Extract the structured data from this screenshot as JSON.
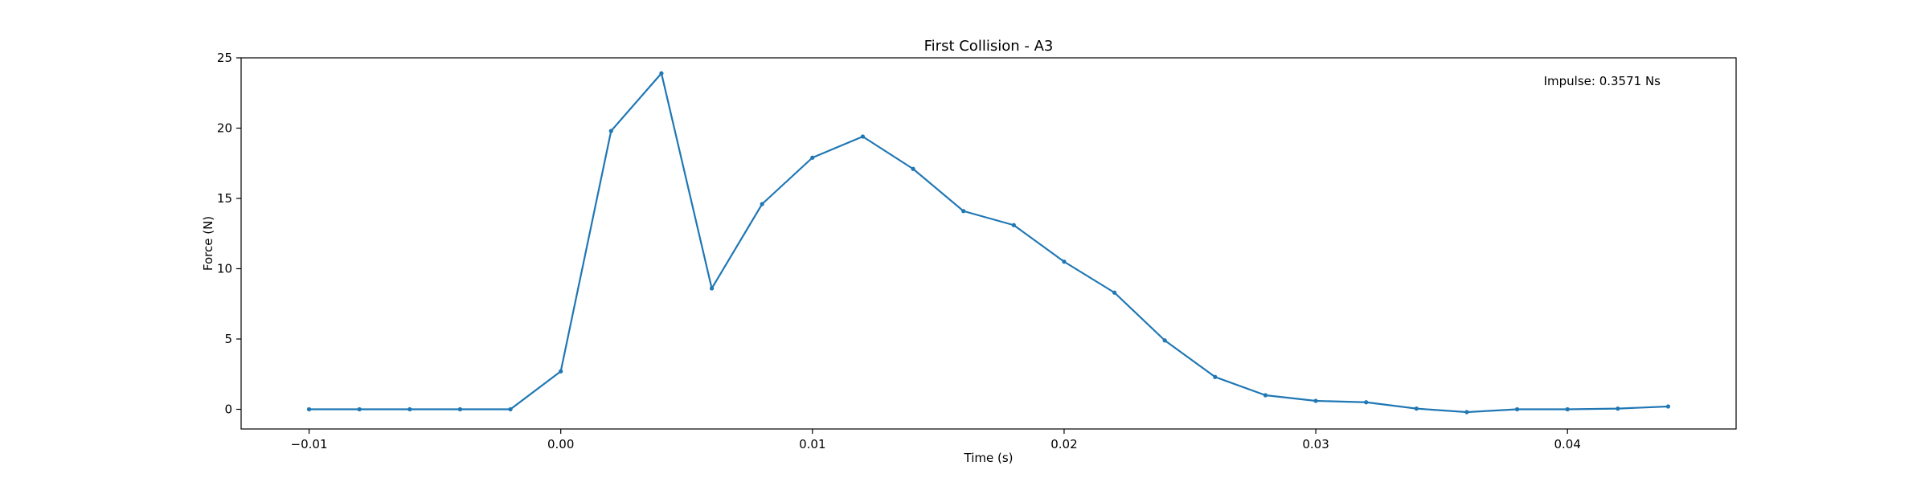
{
  "chart_data": {
    "type": "line",
    "title": "First Collision - A3",
    "xlabel": "Time (s)",
    "ylabel": "Force (N)",
    "xlim": [
      -0.0127,
      0.0467
    ],
    "ylim": [
      -1.4,
      25
    ],
    "xticks": [
      -0.01,
      0.0,
      0.01,
      0.02,
      0.03,
      0.04
    ],
    "xtick_labels": [
      "−0.01",
      "0.00",
      "0.01",
      "0.02",
      "0.03",
      "0.04"
    ],
    "yticks": [
      0,
      5,
      10,
      15,
      20,
      25
    ],
    "ytick_labels": [
      "0",
      "5",
      "10",
      "15",
      "20",
      "25"
    ],
    "grid": false,
    "legend": "none",
    "annotation": "Impulse: 0.3571 Ns",
    "color": "#1f77b4",
    "series": [
      {
        "x": [
          -0.01,
          -0.008,
          -0.006,
          -0.004,
          -0.002,
          0.0,
          0.002,
          0.004,
          0.006,
          0.008,
          0.01,
          0.012,
          0.014,
          0.016,
          0.018,
          0.02,
          0.022,
          0.024,
          0.026,
          0.028,
          0.03,
          0.032,
          0.034,
          0.036,
          0.038,
          0.04,
          0.042,
          0.044
        ],
        "values": [
          0.0,
          0.0,
          0.0,
          0.0,
          0.0,
          2.7,
          19.8,
          23.9,
          8.6,
          14.6,
          17.9,
          19.4,
          17.1,
          14.1,
          13.1,
          10.5,
          8.3,
          4.9,
          2.3,
          1.0,
          0.6,
          0.5,
          0.05,
          -0.2,
          0.0,
          0.0,
          0.05,
          0.2
        ]
      }
    ]
  }
}
